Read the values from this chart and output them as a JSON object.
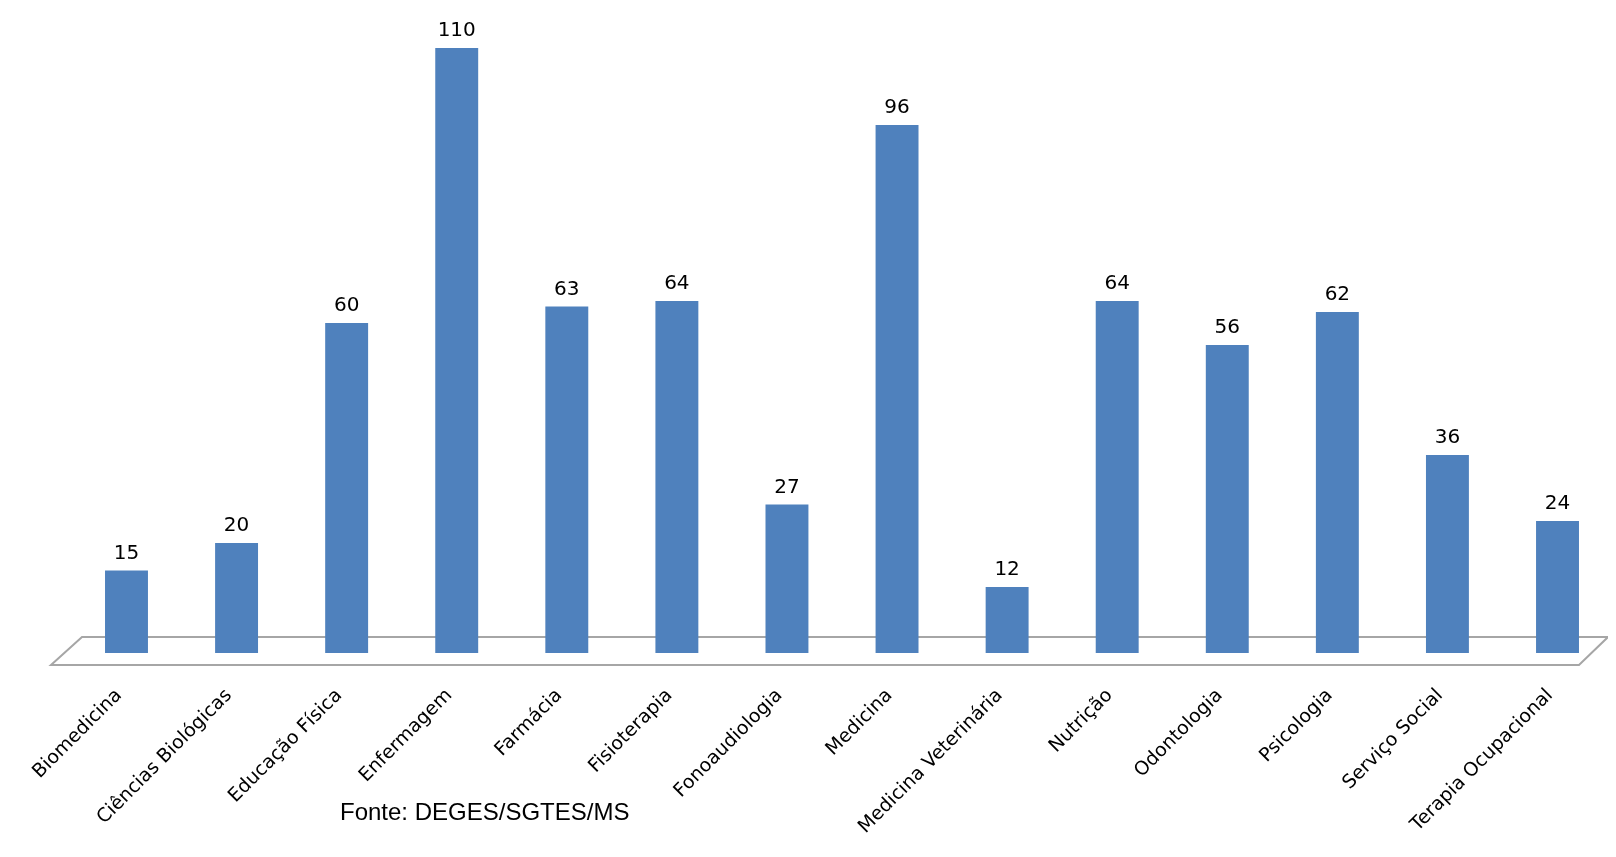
{
  "chart_data": {
    "type": "bar",
    "categories": [
      "Biomedicina",
      "Ciências Biológicas",
      "Educação Física",
      "Enfermagem",
      "Farmácia",
      "Fisioterapia",
      "Fonoaudiologia",
      "Medicina",
      "Medicina Veterinária",
      "Nutrição",
      "Odontologia",
      "Psicologia",
      "Serviço Social",
      "Terapia Ocupacional"
    ],
    "values": [
      15,
      20,
      60,
      110,
      63,
      64,
      27,
      96,
      12,
      64,
      56,
      62,
      36,
      24
    ],
    "color": "#4f81bd",
    "data_labels": true,
    "annotations": [
      "Fonte: DEGES/SGTES/MS"
    ]
  }
}
